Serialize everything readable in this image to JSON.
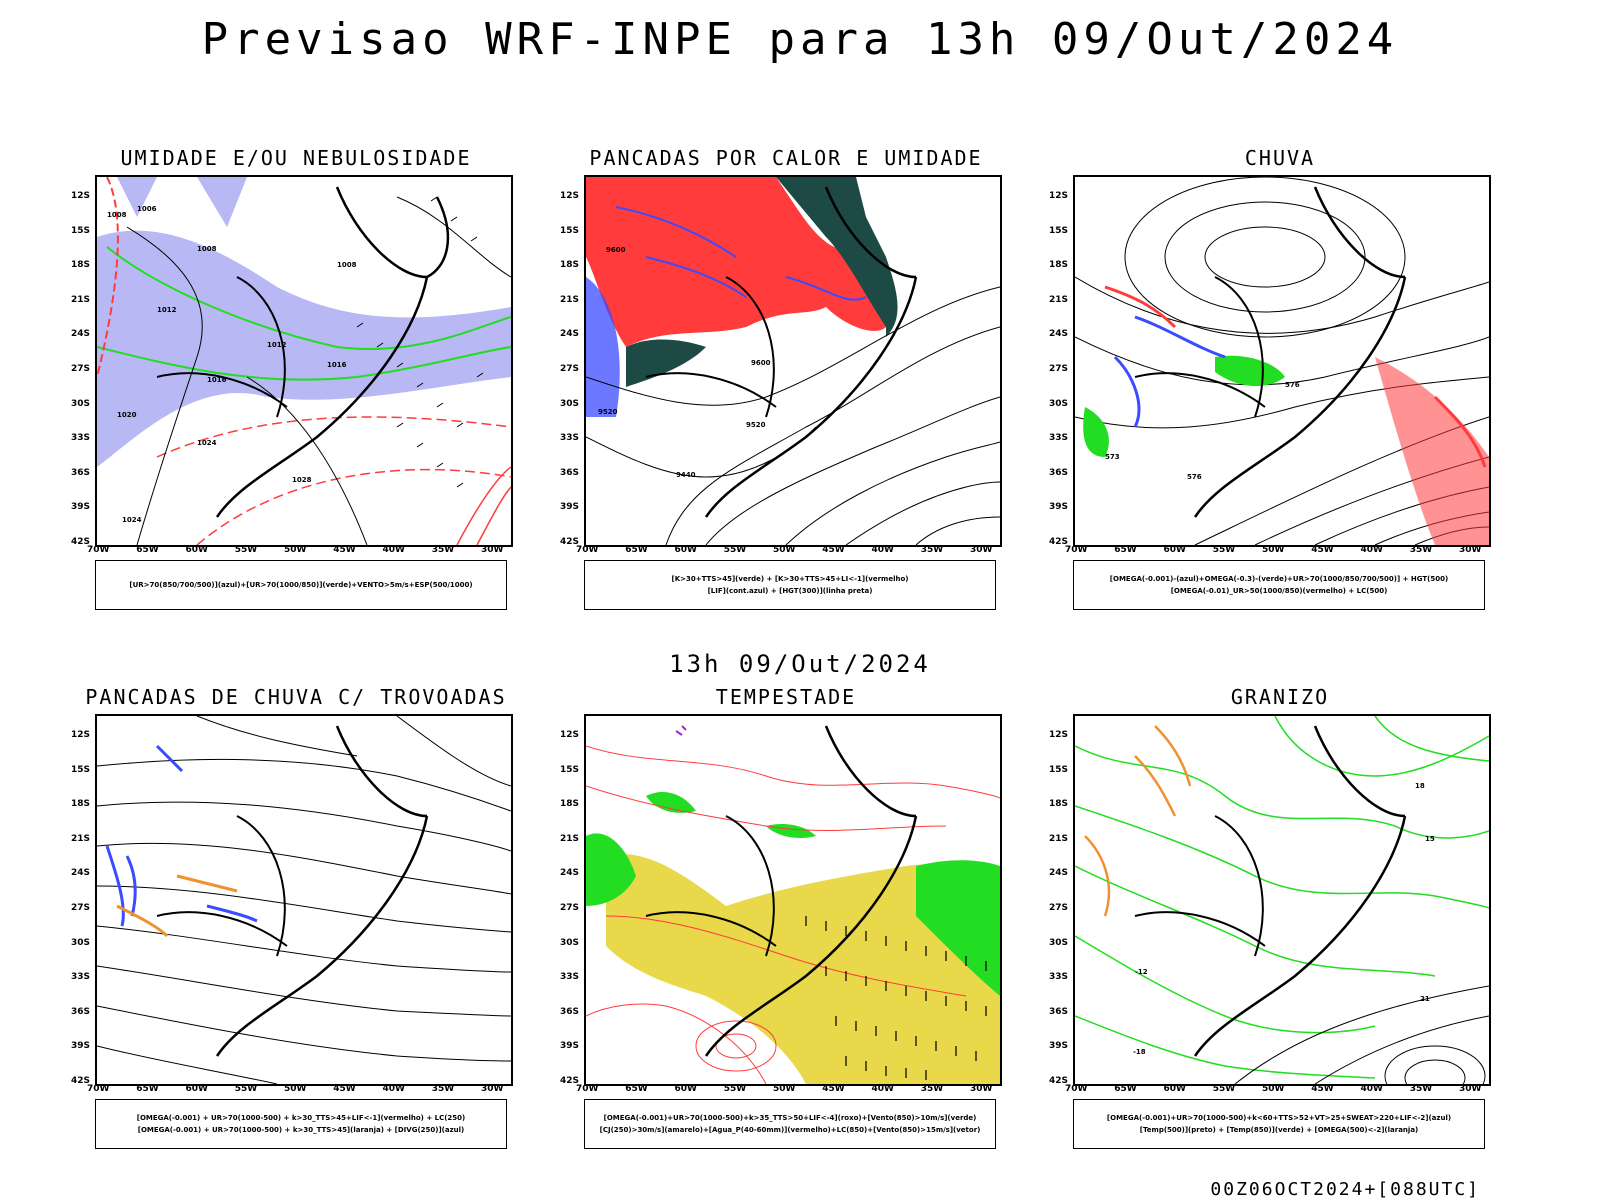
{
  "main_title": "Previsao WRF-INPE  para 13h 09/Out/2024",
  "mid_timestamp": "13h 09/Out/2024",
  "run_info": "00Z06OCT2024+[088UTC]",
  "lat_labels": [
    "12S",
    "15S",
    "18S",
    "21S",
    "24S",
    "27S",
    "30S",
    "33S",
    "36S",
    "39S",
    "42S"
  ],
  "lon_labels": [
    "70W",
    "65W",
    "60W",
    "55W",
    "50W",
    "45W",
    "40W",
    "35W",
    "30W"
  ],
  "panels": [
    {
      "title": "UMIDADE E/OU NEBULOSIDADE",
      "legend": [
        "[UR>70(850/700/500)](azul)+[UR>70(1000/850)](verde)+VENTO>5m/s+ESP(500/1000)"
      ]
    },
    {
      "title": "PANCADAS POR CALOR E UMIDADE",
      "legend": [
        "[K>30+TTS>45](verde) + [K>30+TTS>45+LI<-1](vermelho)",
        "[LIF](cont.azul) + [HGT(300)](linha preta)"
      ]
    },
    {
      "title": "CHUVA",
      "legend": [
        "[OMEGA(-0.001)-(azul)+OMEGA(-0.3)-(verde)+UR>70(1000/850/700/500)] + HGT(500)",
        "[OMEGA(-0.01)_UR>50(1000/850)(vermelho) + LC(500)"
      ]
    },
    {
      "title": "PANCADAS DE CHUVA C/ TROVOADAS",
      "legend": [
        "[OMEGA(-0.001) + UR>70(1000-500) + k>30_TTS>45+LIF<-1](vermelho) + LC(250)",
        "[OMEGA(-0.001) + UR>70(1000-500) + k>30_TTS>45](laranja) + [DIVG(250)](azul)"
      ]
    },
    {
      "title": "TEMPESTADE",
      "legend": [
        "[OMEGA(-0.001)+UR>70(1000-500)+k>35_TTS>50+LIF<-4](roxo)+[Vento(850)>10m/s](verde)",
        "[CJ(250)>30m/s](amarelo)+[Agua_P(40-60mm)](vermelho)+LC(850)+[Vento(850)>15m/s](vetor)"
      ]
    },
    {
      "title": "GRANIZO",
      "legend": [
        "[OMEGA(-0.001)+UR>70(1000-500)+k<60+TTS>52+VT>25+SWEAT>220+LIF<-2](azul)",
        "[Temp(500)](preto) + [Temp(850)](verde) + [OMEGA(500)<-2](laranja)"
      ]
    }
  ],
  "contour_labels": {
    "p1": [
      "1008",
      "1006",
      "1008",
      "1012",
      "1016",
      "1020",
      "1024",
      "1028",
      "1024",
      "1016",
      "1012",
      "1008"
    ],
    "p2": [
      "9600",
      "9520",
      "9440",
      "9600",
      "9520"
    ],
    "p3": [
      "576",
      "573",
      "576"
    ],
    "p6": [
      "-18",
      "-12",
      "18",
      "21",
      "15"
    ]
  },
  "colors": {
    "red": "#ff3b3b",
    "blue": "#3b4bff",
    "green": "#22dd22",
    "lavender": "#b8b8f5",
    "dark_teal": "#1e4a46",
    "yellow": "#e8d84a",
    "orange": "#f09030",
    "purple": "#b020d0"
  }
}
